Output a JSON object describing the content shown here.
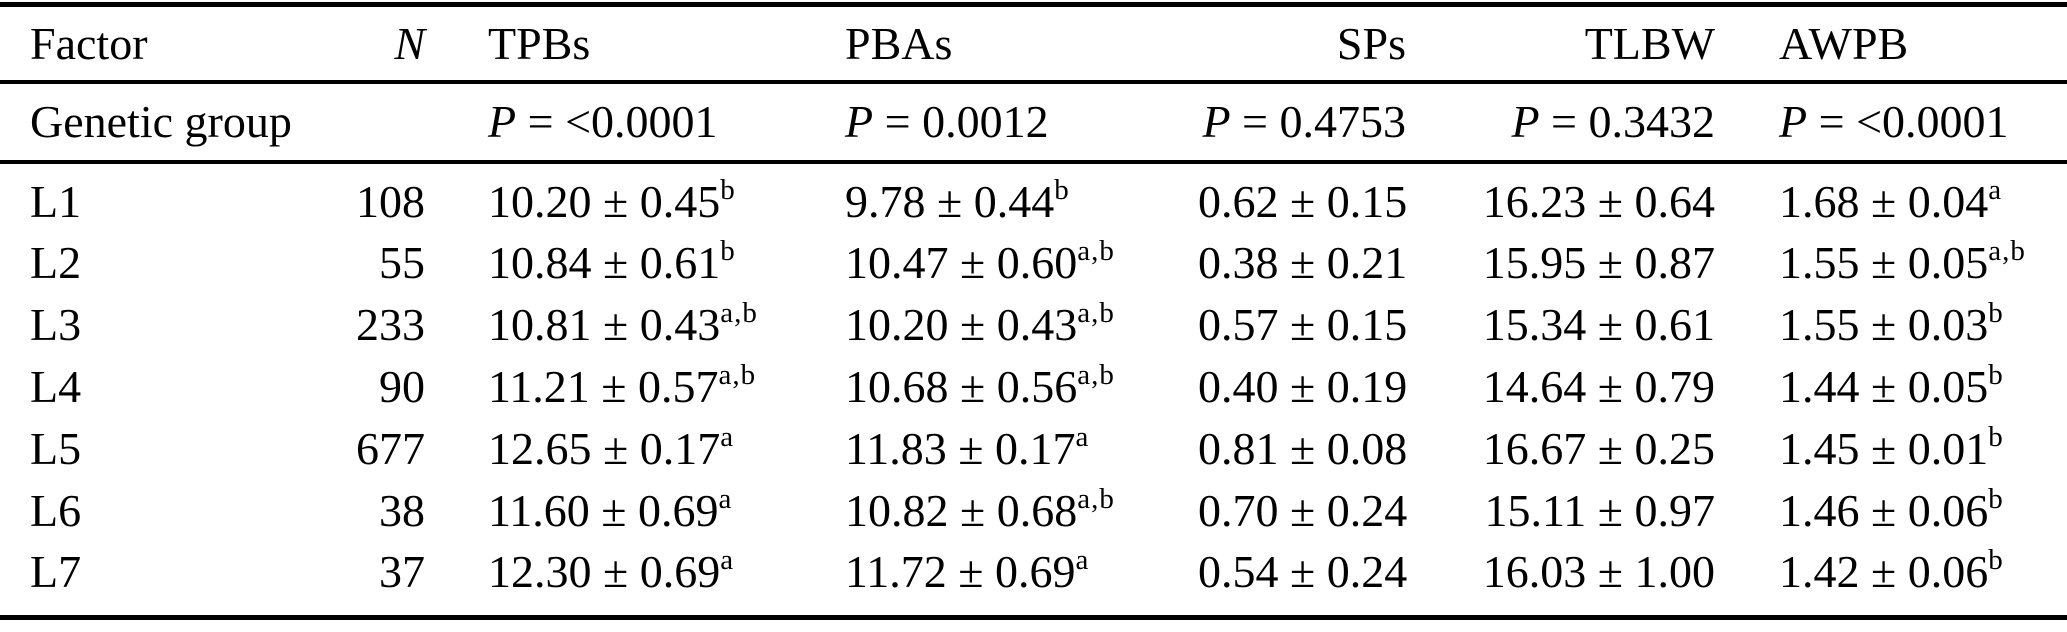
{
  "meta": {
    "background_color": "#ffffff",
    "text_color": "#000000",
    "rule_color": "#000000"
  },
  "table": {
    "columns": [
      {
        "key": "factor",
        "label": "Factor",
        "italic": false
      },
      {
        "key": "n",
        "label": "N",
        "italic": true
      },
      {
        "key": "tpbs",
        "label": "TPBs",
        "italic": false
      },
      {
        "key": "pbas",
        "label": "PBAs",
        "italic": false
      },
      {
        "key": "sps",
        "label": "SPs",
        "italic": false
      },
      {
        "key": "tlbw",
        "label": "TLBW",
        "italic": false
      },
      {
        "key": "awpb",
        "label": "AWPB",
        "italic": false
      }
    ],
    "p_row": {
      "factor": "Genetic group",
      "n": "",
      "cells": [
        {
          "col": "tpbs",
          "var": "P",
          "eq": "=",
          "value": "<0.0001"
        },
        {
          "col": "pbas",
          "var": "P",
          "eq": "=",
          "value": "0.0012"
        },
        {
          "col": "sps",
          "var": "P",
          "eq": "=",
          "value": "0.4753"
        },
        {
          "col": "tlbw",
          "var": "P",
          "eq": "=",
          "value": "0.3432"
        },
        {
          "col": "awpb",
          "var": "P",
          "eq": "=",
          "value": "<0.0001"
        }
      ]
    },
    "rows": [
      {
        "factor": "L1",
        "n": "108",
        "tpbs": {
          "value": "10.20 ± 0.45",
          "sup": "b"
        },
        "pbas": {
          "value": "9.78 ± 0.44",
          "sup": "b"
        },
        "sps": {
          "value": "0.62 ± 0.15",
          "sup": ""
        },
        "tlbw": {
          "value": "16.23 ± 0.64",
          "sup": ""
        },
        "awpb": {
          "value": "1.68 ± 0.04",
          "sup": "a"
        }
      },
      {
        "factor": "L2",
        "n": "55",
        "tpbs": {
          "value": "10.84 ± 0.61",
          "sup": "b"
        },
        "pbas": {
          "value": "10.47 ± 0.60",
          "sup": "a,b"
        },
        "sps": {
          "value": "0.38 ± 0.21",
          "sup": ""
        },
        "tlbw": {
          "value": "15.95 ± 0.87",
          "sup": ""
        },
        "awpb": {
          "value": "1.55 ± 0.05",
          "sup": "a,b"
        }
      },
      {
        "factor": "L3",
        "n": "233",
        "tpbs": {
          "value": "10.81 ± 0.43",
          "sup": "a,b"
        },
        "pbas": {
          "value": "10.20 ± 0.43",
          "sup": "a,b"
        },
        "sps": {
          "value": "0.57 ± 0.15",
          "sup": ""
        },
        "tlbw": {
          "value": "15.34 ± 0.61",
          "sup": ""
        },
        "awpb": {
          "value": "1.55 ± 0.03",
          "sup": "b"
        }
      },
      {
        "factor": "L4",
        "n": "90",
        "tpbs": {
          "value": "11.21 ± 0.57",
          "sup": "a,b"
        },
        "pbas": {
          "value": "10.68 ± 0.56",
          "sup": "a,b"
        },
        "sps": {
          "value": "0.40 ± 0.19",
          "sup": ""
        },
        "tlbw": {
          "value": "14.64 ± 0.79",
          "sup": ""
        },
        "awpb": {
          "value": "1.44 ± 0.05",
          "sup": "b"
        }
      },
      {
        "factor": "L5",
        "n": "677",
        "tpbs": {
          "value": "12.65 ± 0.17",
          "sup": "a"
        },
        "pbas": {
          "value": "11.83 ± 0.17",
          "sup": "a"
        },
        "sps": {
          "value": "0.81 ± 0.08",
          "sup": ""
        },
        "tlbw": {
          "value": "16.67 ± 0.25",
          "sup": ""
        },
        "awpb": {
          "value": "1.45 ± 0.01",
          "sup": "b"
        }
      },
      {
        "factor": "L6",
        "n": "38",
        "tpbs": {
          "value": "11.60 ± 0.69",
          "sup": "a"
        },
        "pbas": {
          "value": "10.82 ± 0.68",
          "sup": "a,b"
        },
        "sps": {
          "value": "0.70 ± 0.24",
          "sup": ""
        },
        "tlbw": {
          "value": "15.11 ± 0.97",
          "sup": ""
        },
        "awpb": {
          "value": "1.46 ± 0.06",
          "sup": "b"
        }
      },
      {
        "factor": "L7",
        "n": "37",
        "tpbs": {
          "value": "12.30 ± 0.69",
          "sup": "a"
        },
        "pbas": {
          "value": "11.72 ± 0.69",
          "sup": "a"
        },
        "sps": {
          "value": "0.54 ± 0.24",
          "sup": ""
        },
        "tlbw": {
          "value": "16.03 ± 1.00",
          "sup": ""
        },
        "awpb": {
          "value": "1.42 ± 0.06",
          "sup": "b"
        }
      }
    ]
  }
}
